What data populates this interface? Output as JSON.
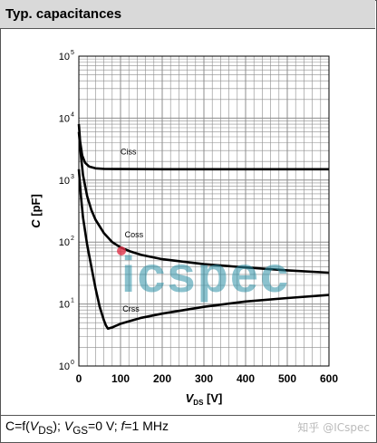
{
  "header": {
    "title": "Typ. capacitances"
  },
  "footer": {
    "c": "C=f(",
    "vds_v": "V",
    "vds_sub": "DS",
    "mid": "); ",
    "vgs_v": "V",
    "vgs_sub": "GS",
    "mid2": "=0 V; ",
    "f": "f",
    "tail": "=1 MHz"
  },
  "watermark": {
    "center": "icspec",
    "corner": "知乎 @ICspec"
  },
  "colors": {
    "curve": "#000000",
    "grid": "#8c8c8c",
    "watermark": "#2b8fa6"
  },
  "chart_data": {
    "type": "line",
    "xlabel_v": "V",
    "xlabel_sub": "DS",
    "xlabel_unit": " [V]",
    "ylabel_c": "C",
    "ylabel_unit": " [pF]",
    "x_ticks": [
      "0",
      "100",
      "200",
      "300",
      "400",
      "500",
      "600"
    ],
    "y_ticks": [
      {
        "base": "10",
        "exp": "0"
      },
      {
        "base": "10",
        "exp": "1"
      },
      {
        "base": "10",
        "exp": "2"
      },
      {
        "base": "10",
        "exp": "3"
      },
      {
        "base": "10",
        "exp": "4"
      },
      {
        "base": "10",
        "exp": "5"
      }
    ],
    "xlim": [
      0,
      600
    ],
    "ylim": [
      1,
      100000
    ],
    "y_scale": "log",
    "grid": true,
    "series": [
      {
        "name": "Ciss",
        "x": [
          0,
          3,
          8,
          15,
          25,
          40,
          60,
          100,
          200,
          300,
          400,
          500,
          600
        ],
        "y": [
          8000,
          4200,
          2500,
          1900,
          1650,
          1550,
          1520,
          1510,
          1500,
          1500,
          1500,
          1500,
          1500
        ]
      },
      {
        "name": "Coss",
        "x": [
          0,
          5,
          10,
          20,
          30,
          40,
          60,
          80,
          100,
          125,
          150,
          200,
          300,
          400,
          500,
          600
        ],
        "y": [
          6000,
          2500,
          1200,
          550,
          330,
          230,
          140,
          100,
          82,
          70,
          62,
          53,
          44,
          39,
          35,
          32
        ]
      },
      {
        "name": "Crss",
        "x": [
          0,
          5,
          10,
          20,
          30,
          40,
          50,
          60,
          65,
          70,
          80,
          100,
          150,
          200,
          300,
          400,
          500,
          600
        ],
        "y": [
          1500,
          550,
          250,
          90,
          40,
          18,
          9,
          5.5,
          4.5,
          4,
          4.2,
          4.8,
          6,
          7,
          9,
          11,
          12.5,
          14
        ]
      }
    ]
  }
}
